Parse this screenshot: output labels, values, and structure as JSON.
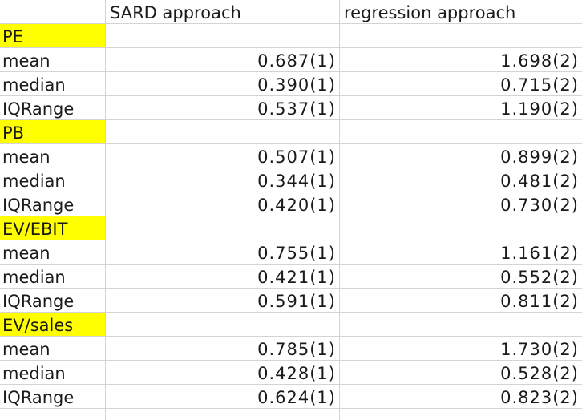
{
  "columns": [
    "",
    "SARD approach",
    "regression approach"
  ],
  "groups": [
    {
      "name": "PE",
      "rows": [
        {
          "label": "mean",
          "sard": "0.687(1)",
          "reg": "1.698(2)"
        },
        {
          "label": "median",
          "sard": "0.390(1)",
          "reg": "0.715(2)"
        },
        {
          "label": "IQRange",
          "sard": "0.537(1)",
          "reg": "1.190(2)"
        }
      ]
    },
    {
      "name": "PB",
      "rows": [
        {
          "label": "mean",
          "sard": "0.507(1)",
          "reg": "0.899(2)"
        },
        {
          "label": "median",
          "sard": "0.344(1)",
          "reg": "0.481(2)"
        },
        {
          "label": "IQRange",
          "sard": "0.420(1)",
          "reg": "0.730(2)"
        }
      ]
    },
    {
      "name": "EV/EBIT",
      "rows": [
        {
          "label": "mean",
          "sard": "0.755(1)",
          "reg": "1.161(2)"
        },
        {
          "label": "median",
          "sard": "0.421(1)",
          "reg": "0.552(2)"
        },
        {
          "label": "IQRange",
          "sard": "0.591(1)",
          "reg": "0.811(2)"
        }
      ]
    },
    {
      "name": "EV/sales",
      "rows": [
        {
          "label": "mean",
          "sard": "0.785(1)",
          "reg": "1.730(2)"
        },
        {
          "label": "median",
          "sard": "0.428(1)",
          "reg": "0.528(2)"
        },
        {
          "label": "IQRange",
          "sard": "0.624(1)",
          "reg": "0.823(2)"
        }
      ]
    }
  ],
  "highlight_color": "#ffff00"
}
